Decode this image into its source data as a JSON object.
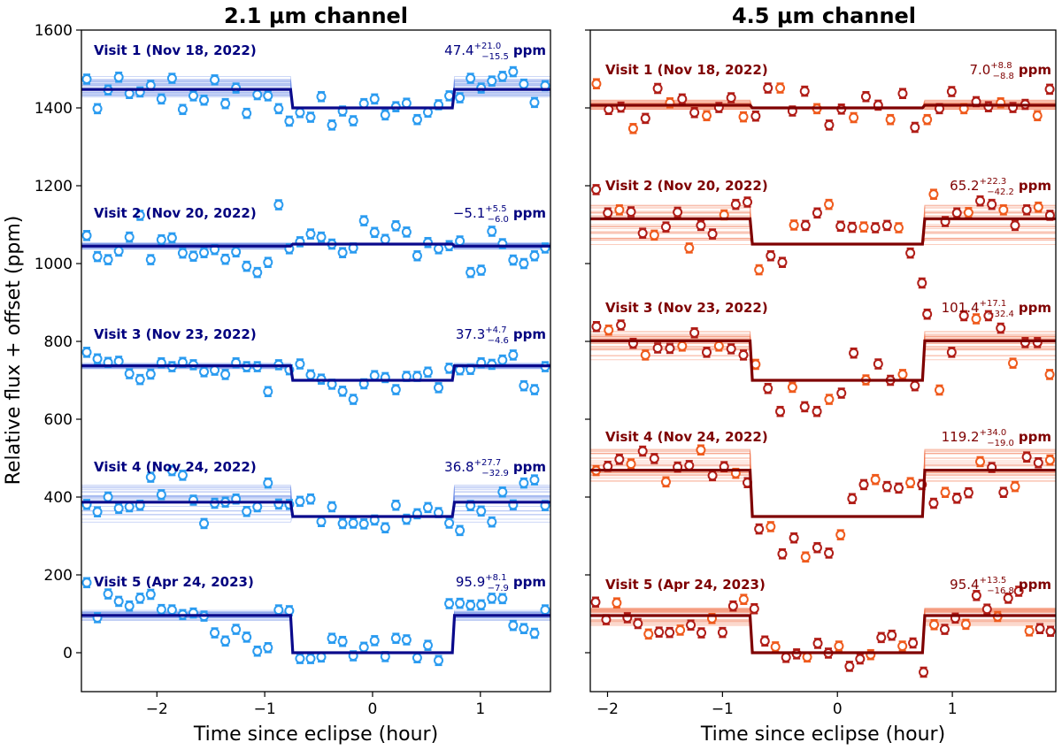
{
  "figure": {
    "ylabel": "Relative flux + offset (ppm)"
  },
  "colors": {
    "ch21_visit_text": "#00007f",
    "ch21_model": "#0a0a8c",
    "ch21_points": "#2a9bf0",
    "ch21_band": "#6f8fe8",
    "ch45_visit_text": "#7f0000",
    "ch45_model": "#7f0000",
    "ch45_points_dark": "#b01c16",
    "ch45_points_light": "#ef5a1c",
    "ch45_band": "#f07048"
  },
  "chart_data": [
    {
      "type": "scatter",
      "title": "2.1 μm channel",
      "xlabel": "Time since eclipse (hour)",
      "ylabel": "Relative flux + offset (ppm)",
      "xlim": [
        -2.7,
        1.65
      ],
      "ylim": [
        -100,
        1600
      ],
      "xticks": [
        -2,
        -1,
        0,
        1
      ],
      "yticks": [
        0,
        200,
        400,
        600,
        800,
        1000,
        1200,
        1400,
        1600
      ],
      "eclipse_window": [
        -0.75,
        0.75
      ],
      "series": [
        {
          "name": "Visit 1 (Nov 18, 2022)",
          "baseline": 1400,
          "depth_value": "47.4",
          "plus": "+21.0",
          "minus": "−15.5",
          "unit": "ppm",
          "flux": [
            1474,
            1398,
            1446,
            1479,
            1437,
            1441,
            1458,
            1423,
            1476,
            1396,
            1431,
            1420,
            1472,
            1411,
            1451,
            1386,
            1434,
            1431,
            1398,
            1366,
            1388,
            1376,
            1429,
            1356,
            1392,
            1367,
            1411,
            1423,
            1382,
            1403,
            1412,
            1370,
            1389,
            1408,
            1431,
            1426,
            1476,
            1451,
            1469,
            1481,
            1493,
            1461,
            1414,
            1457
          ]
        },
        {
          "name": "Visit 2 (Nov 20, 2022)",
          "baseline": 1050,
          "depth_value": "−5.1",
          "plus": "+5.5",
          "minus": "−6.0",
          "unit": "ppm",
          "flux": [
            1072,
            1018,
            1010,
            1032,
            1068,
            1124,
            1010,
            1061,
            1066,
            1027,
            1019,
            1028,
            1036,
            1011,
            1030,
            993,
            977,
            1003,
            1151,
            1038,
            1056,
            1076,
            1068,
            1050,
            1028,
            1040,
            1110,
            1080,
            1062,
            1097,
            1081,
            1020,
            1054,
            1038,
            1046,
            1058,
            977,
            983,
            1083,
            1051,
            1009,
            1000,
            1020,
            1040
          ]
        },
        {
          "name": "Visit 3 (Nov 23, 2022)",
          "baseline": 700,
          "depth_value": "37.3",
          "plus": "+4.7",
          "minus": "−4.6",
          "unit": "ppm",
          "flux": [
            772,
            755,
            746,
            749,
            717,
            702,
            716,
            745,
            735,
            746,
            740,
            722,
            726,
            715,
            745,
            735,
            735,
            671,
            740,
            727,
            742,
            714,
            703,
            690,
            672,
            651,
            691,
            712,
            707,
            676,
            710,
            710,
            721,
            681,
            731,
            727,
            728,
            745,
            741,
            752,
            765,
            686,
            676,
            735
          ]
        },
        {
          "name": "Visit 4 (Nov 24, 2022)",
          "baseline": 350,
          "depth_value": "36.8",
          "plus": "+27.7",
          "minus": "−32.9",
          "unit": "ppm",
          "flux": [
            381,
            362,
            400,
            371,
            375,
            379,
            451,
            406,
            468,
            456,
            392,
            332,
            384,
            387,
            395,
            363,
            375,
            436,
            382,
            381,
            389,
            395,
            337,
            375,
            332,
            333,
            331,
            341,
            321,
            379,
            343,
            357,
            373,
            360,
            333,
            314,
            378,
            364,
            336,
            413,
            380,
            436,
            444,
            378
          ]
        },
        {
          "name": "Visit 5 (Apr 24, 2023)",
          "baseline": 0,
          "depth_value": "95.9",
          "plus": "+8.1",
          "minus": "−7.9",
          "unit": "ppm",
          "flux": [
            180,
            90,
            151,
            132,
            120,
            140,
            150,
            111,
            110,
            98,
            102,
            94,
            51,
            30,
            60,
            40,
            4,
            13,
            110,
            108,
            -15,
            -15,
            -11,
            37,
            29,
            -8,
            14,
            31,
            -10,
            37,
            33,
            -13,
            19,
            -20,
            126,
            127,
            122,
            123,
            140,
            139,
            70,
            62,
            50,
            110
          ]
        }
      ]
    },
    {
      "type": "scatter",
      "title": "4.5 μm channel",
      "xlabel": "Time since eclipse (hour)",
      "ylabel": "",
      "xlim": [
        -2.15,
        1.9
      ],
      "ylim": [
        -100,
        1600
      ],
      "xticks": [
        -2,
        -1,
        0,
        1
      ],
      "yticks": [
        0,
        200,
        400,
        600,
        800,
        1000,
        1200,
        1400,
        1600
      ],
      "eclipse_window": [
        -0.75,
        0.75
      ],
      "series": [
        {
          "name": "Visit 1 (Nov 18, 2022)",
          "baseline": 1400,
          "depth_value": "7.0",
          "plus": "+8.8",
          "minus": "−8.8",
          "unit": "ppm",
          "flux": [
            1462,
            1396,
            1402,
            1347,
            1373,
            1450,
            1413,
            1423,
            1388,
            1380,
            1401,
            1426,
            1377,
            1379,
            1451,
            1451,
            1392,
            1443,
            1398,
            1356,
            1397,
            1375,
            1429,
            1407,
            1370,
            1437,
            1350,
            1370,
            1398,
            1442,
            1398,
            1416,
            1403,
            1413,
            1401,
            1409,
            1380,
            1448
          ]
        },
        {
          "name": "Visit 2 (Nov 20, 2022)",
          "baseline": 1050,
          "depth_value": "65.2",
          "plus": "+22.3",
          "minus": "−42.2",
          "unit": "ppm",
          "flux": [
            1190,
            1130,
            1138,
            1133,
            1078,
            1073,
            1094,
            1132,
            1040,
            1098,
            1076,
            1125,
            1152,
            1158,
            984,
            1020,
            1003,
            1099,
            1098,
            1130,
            1152,
            1096,
            1093,
            1094,
            1092,
            1098,
            1092,
            1027,
            950,
            1178,
            1108,
            1130,
            1131,
            1161,
            1152,
            1138,
            1098,
            1138,
            1145,
            1124
          ]
        },
        {
          "name": "Visit 3 (Nov 23, 2022)",
          "baseline": 700,
          "depth_value": "101.4",
          "plus": "+17.1",
          "minus": "−32.4",
          "unit": "ppm",
          "flux": [
            838,
            829,
            842,
            795,
            765,
            783,
            782,
            788,
            822,
            772,
            788,
            781,
            765,
            741,
            679,
            620,
            682,
            632,
            620,
            651,
            667,
            770,
            701,
            742,
            700,
            715,
            686,
            870,
            675,
            772,
            866,
            858,
            866,
            834,
            744,
            797,
            797,
            715
          ]
        },
        {
          "name": "Visit 4 (Nov 24, 2022)",
          "baseline": 350,
          "depth_value": "119.2",
          "plus": "+34.0",
          "minus": "−19.0",
          "unit": "ppm",
          "flux": [
            468,
            479,
            497,
            485,
            518,
            499,
            439,
            477,
            481,
            521,
            455,
            478,
            461,
            437,
            318,
            324,
            254,
            295,
            246,
            270,
            256,
            303,
            396,
            432,
            445,
            427,
            423,
            437,
            432,
            384,
            412,
            397,
            411,
            491,
            476,
            412,
            427,
            503,
            488,
            495
          ]
        },
        {
          "name": "Visit 5 (Apr 24, 2023)",
          "baseline": 0,
          "depth_value": "95.4",
          "plus": "+13.5",
          "minus": "−16.8",
          "unit": "ppm",
          "flux": [
            130,
            85,
            128,
            90,
            75,
            48,
            53,
            52,
            58,
            71,
            51,
            88,
            52,
            120,
            137,
            113,
            30,
            15,
            -12,
            -3,
            -11,
            24,
            -1,
            17,
            -35,
            -16,
            -5,
            39,
            45,
            17,
            25,
            -50,
            72,
            60,
            89,
            73,
            147,
            112,
            93,
            140,
            158,
            56,
            62,
            55
          ]
        }
      ]
    }
  ]
}
